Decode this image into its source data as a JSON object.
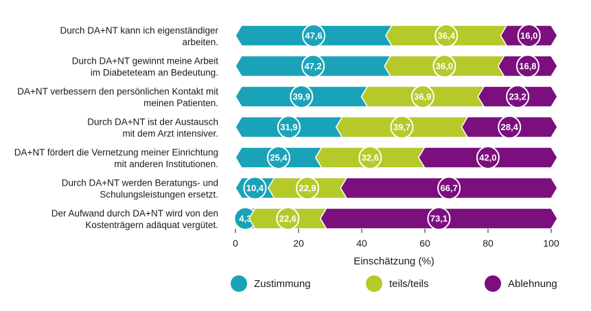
{
  "chart_data": {
    "type": "bar",
    "orientation": "horizontal",
    "stacked": true,
    "categories": [
      [
        "Durch DA+NT kann ich eigenständiger",
        "arbeiten."
      ],
      [
        "Durch DA+NT gewinnt meine Arbeit",
        "im Diabeteteam an Bedeutung."
      ],
      [
        "DA+NT verbessern den persönlichen Kontakt mit",
        "meinen Patienten."
      ],
      [
        "Durch DA+NT ist der Austausch",
        "mit dem Arzt intensiver."
      ],
      [
        "DA+NT fördert die Vernetzung meiner Einrichtung",
        "mit anderen Institutionen."
      ],
      [
        "Durch DA+NT werden Beratungs- und",
        "Schulungsleistungen ersetzt."
      ],
      [
        "Der Aufwand durch DA+NT wird von den",
        "Kostenträgern adäquat vergütet."
      ]
    ],
    "series": [
      {
        "name": "Zustimmung",
        "color": "#1aa3b8",
        "values": [
          47.6,
          47.2,
          39.9,
          31.9,
          25.4,
          10.4,
          4.3
        ],
        "labels": [
          "47,6",
          "47,2",
          "39,9",
          "31,9",
          "25,4",
          "10,4",
          "4,3"
        ]
      },
      {
        "name": "teils/teils",
        "color": "#b5c92a",
        "values": [
          36.4,
          36.0,
          36.9,
          39.7,
          32.6,
          22.9,
          22.6
        ],
        "labels": [
          "36,4",
          "36,0",
          "36,9",
          "39,7",
          "32,6",
          "22,9",
          "22,6"
        ]
      },
      {
        "name": "Ablehnung",
        "color": "#7b0f7e",
        "values": [
          16.0,
          16.8,
          23.2,
          28.4,
          42.0,
          66.7,
          73.1
        ],
        "labels": [
          "16,0",
          "16,8",
          "23,2",
          "28,4",
          "42,0",
          "66,7",
          "73,1"
        ]
      }
    ],
    "xlabel": "Einschätzung (%)",
    "xlim": [
      0,
      100
    ],
    "xticks": [
      "0",
      "20",
      "40",
      "60",
      "80",
      "100"
    ],
    "legend_position": "bottom",
    "grid": false
  }
}
